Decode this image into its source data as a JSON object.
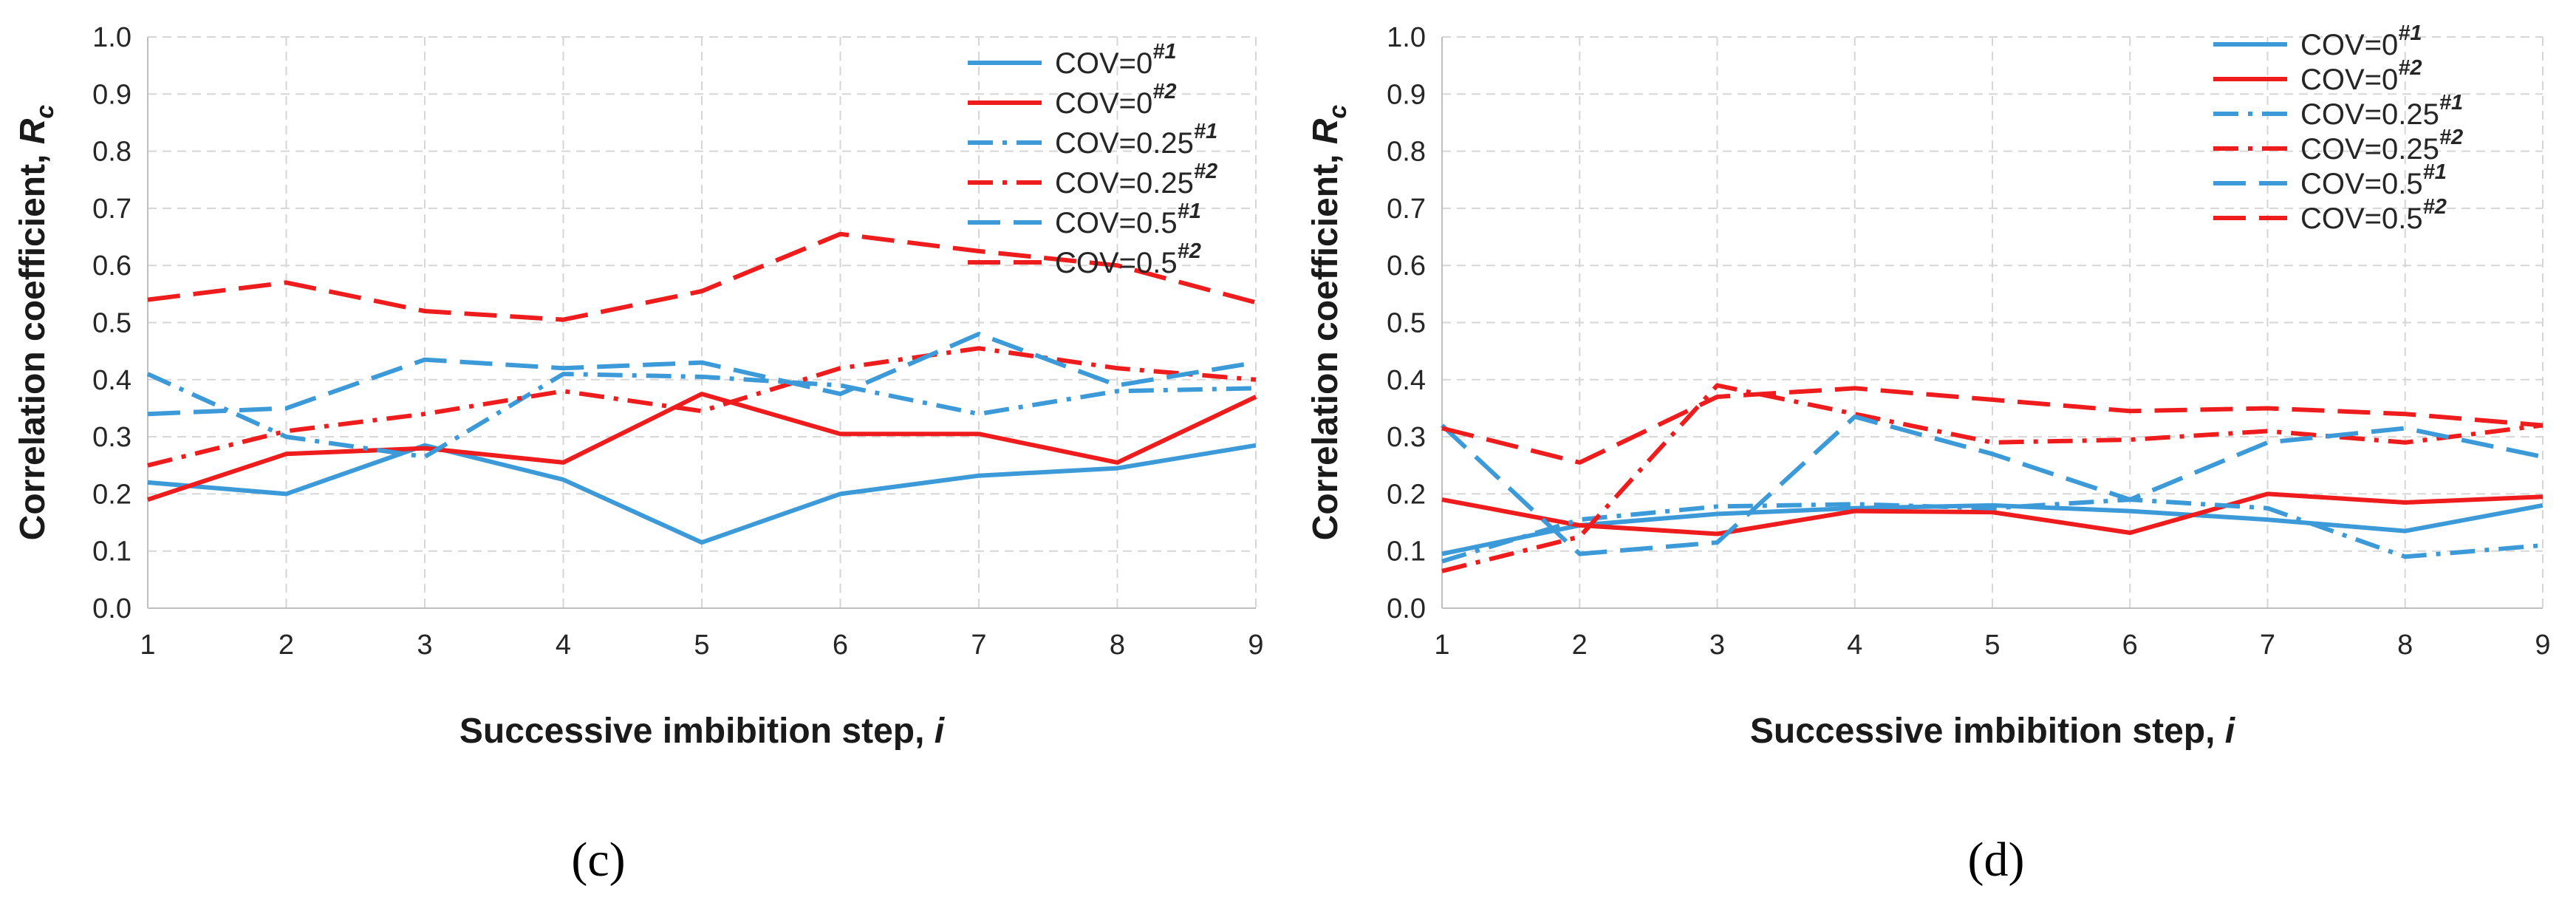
{
  "colors": {
    "blue": "#3d9ad8",
    "red": "#ee1c1c",
    "grid": "#d6d6d6",
    "axis": "#bfbfbf"
  },
  "chart_data": [
    {
      "panel": "c",
      "type": "line",
      "panel_label": "(c)",
      "x": [
        1,
        2,
        3,
        4,
        5,
        6,
        7,
        8,
        9
      ],
      "xlabel": "Successive imbibition step, ",
      "xlabel_var": "i",
      "ylabel": "Correlation coefficient, ",
      "ylabel_var": "R",
      "ylabel_sub": "c",
      "ylim": [
        0,
        1
      ],
      "yticks": [
        "0.0",
        "0.1",
        "0.2",
        "0.3",
        "0.4",
        "0.5",
        "0.6",
        "0.7",
        "0.8",
        "0.9",
        "1.0"
      ],
      "xticks": [
        "1",
        "2",
        "3",
        "4",
        "5",
        "6",
        "7",
        "8",
        "9"
      ],
      "grid": true,
      "legend_position": "top-right",
      "series": [
        {
          "name": "COV=0",
          "sup": "#1",
          "color": "blue",
          "dash": "solid",
          "values": [
            0.22,
            0.2,
            0.285,
            0.225,
            0.115,
            0.2,
            0.232,
            0.245,
            0.285
          ]
        },
        {
          "name": "COV=0",
          "sup": "#2",
          "color": "red",
          "dash": "solid",
          "values": [
            0.19,
            0.27,
            0.28,
            0.255,
            0.375,
            0.305,
            0.305,
            0.255,
            0.37
          ]
        },
        {
          "name": "COV=0.25",
          "sup": "#1",
          "color": "blue",
          "dash": "dashdot",
          "values": [
            0.41,
            0.3,
            0.265,
            0.41,
            0.405,
            0.39,
            0.34,
            0.38,
            0.385
          ]
        },
        {
          "name": "COV=0.25",
          "sup": "#2",
          "color": "red",
          "dash": "dashdot",
          "values": [
            0.25,
            0.31,
            0.34,
            0.38,
            0.345,
            0.42,
            0.455,
            0.42,
            0.4
          ]
        },
        {
          "name": "COV=0.5",
          "sup": "#1",
          "color": "blue",
          "dash": "longdash",
          "values": [
            0.34,
            0.35,
            0.435,
            0.42,
            0.43,
            0.375,
            0.48,
            0.39,
            0.43
          ]
        },
        {
          "name": "COV=0.5",
          "sup": "#2",
          "color": "red",
          "dash": "longdash",
          "values": [
            0.54,
            0.57,
            0.52,
            0.505,
            0.555,
            0.655,
            0.625,
            0.6,
            0.535
          ]
        }
      ]
    },
    {
      "panel": "d",
      "type": "line",
      "panel_label": "(d)",
      "x": [
        1,
        2,
        3,
        4,
        5,
        6,
        7,
        8,
        9
      ],
      "xlabel": "Successive imbibition step, ",
      "xlabel_var": "i",
      "ylabel": "Correlation coefficient, ",
      "ylabel_var": "R",
      "ylabel_sub": "c",
      "ylim": [
        0,
        1
      ],
      "yticks": [
        "0.0",
        "0.1",
        "0.2",
        "0.3",
        "0.4",
        "0.5",
        "0.6",
        "0.7",
        "0.8",
        "0.9",
        "1.0"
      ],
      "xticks": [
        "1",
        "2",
        "3",
        "4",
        "5",
        "6",
        "7",
        "8",
        "9"
      ],
      "grid": true,
      "legend_position": "top-right",
      "series": [
        {
          "name": "COV=0",
          "sup": "#1",
          "color": "blue",
          "dash": "solid",
          "values": [
            0.095,
            0.145,
            0.165,
            0.175,
            0.18,
            0.17,
            0.155,
            0.135,
            0.18
          ]
        },
        {
          "name": "COV=0",
          "sup": "#2",
          "color": "red",
          "dash": "solid",
          "values": [
            0.19,
            0.145,
            0.13,
            0.17,
            0.168,
            0.132,
            0.2,
            0.185,
            0.195
          ]
        },
        {
          "name": "COV=0.25",
          "sup": "#1",
          "color": "blue",
          "dash": "dashdot",
          "values": [
            0.082,
            0.155,
            0.178,
            0.182,
            0.175,
            0.19,
            0.175,
            0.09,
            0.11
          ]
        },
        {
          "name": "COV=0.25",
          "sup": "#2",
          "color": "red",
          "dash": "dashdot",
          "values": [
            0.065,
            0.125,
            0.39,
            0.34,
            0.29,
            0.295,
            0.31,
            0.29,
            0.32
          ]
        },
        {
          "name": "COV=0.5",
          "sup": "#1",
          "color": "blue",
          "dash": "longdash",
          "values": [
            0.32,
            0.095,
            0.115,
            0.335,
            0.27,
            0.19,
            0.29,
            0.315,
            0.265
          ]
        },
        {
          "name": "COV=0.5",
          "sup": "#2",
          "color": "red",
          "dash": "longdash",
          "values": [
            0.315,
            0.255,
            0.37,
            0.385,
            0.365,
            0.345,
            0.35,
            0.34,
            0.32
          ]
        }
      ]
    }
  ]
}
